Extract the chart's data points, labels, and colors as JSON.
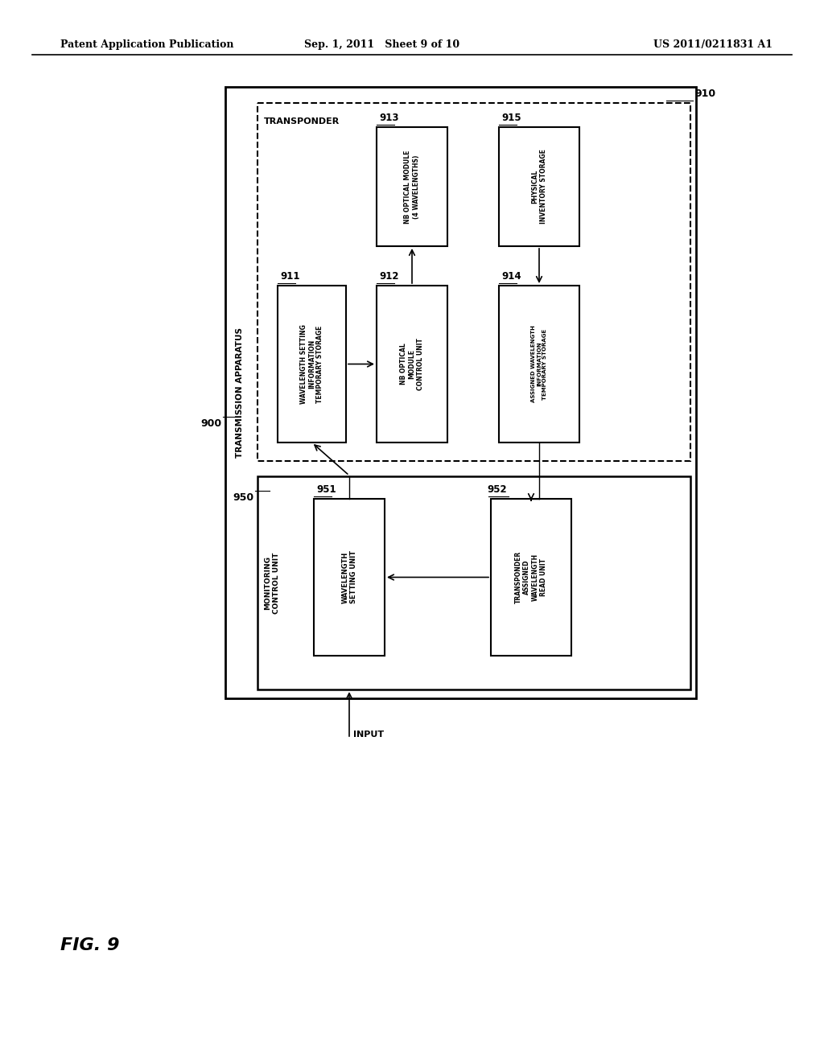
{
  "bg_color": "#ffffff",
  "header_left": "Patent Application Publication",
  "header_mid": "Sep. 1, 2011   Sheet 9 of 10",
  "header_right": "US 2011/0211831 A1",
  "footer_label": "FIG. 9",
  "transmission_label": "TRANSMISSION APPARATUS",
  "transponder_label": "TRANSPONDER",
  "label_900": "900",
  "label_910": "910",
  "label_911": "911",
  "label_912": "912",
  "label_913": "913",
  "label_914": "914",
  "label_915": "915",
  "label_950": "950",
  "label_951": "951",
  "label_952": "952",
  "text_911": "WAVELENGTH SETTING\nINFORMATION\nTEMPORARY STORAGE",
  "text_912": "NB OPTICAL\nMODULE\nCONTROL UNIT",
  "text_913": "NB OPTICAL MODULE\n(4 WAVELENGTHS)",
  "text_914": "ASSIGNED WAVELENGTH\nINFORMATION\nTEMPORARY STORAGE",
  "text_915": "PHYSICAL\nINVENTORY STORAGE",
  "text_mon": "MONITORING\nCONTROL UNIT",
  "text_951": "WAVELENGTH\nSETTING UNIT",
  "text_952": "TRANSPONDER\nASSIGNED\nWAVELENGTH\nREAD UNIT",
  "input_label": "INPUT"
}
